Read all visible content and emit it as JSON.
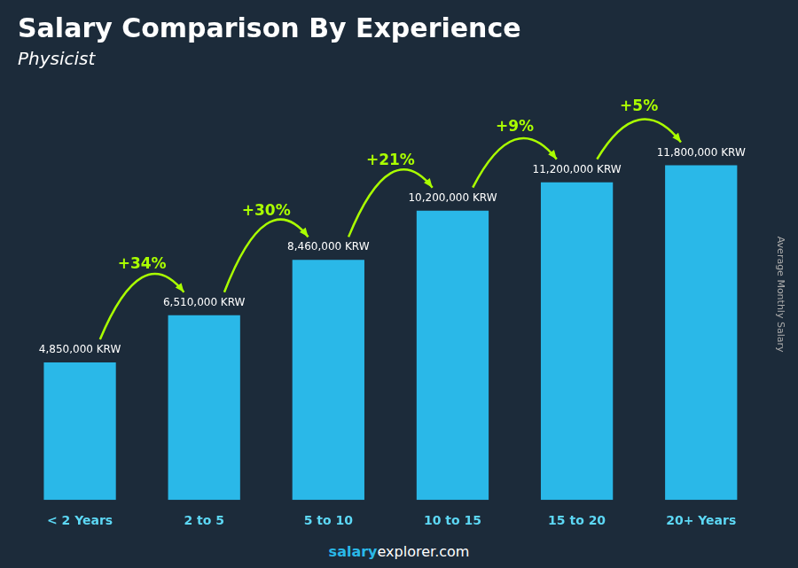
{
  "chart_data": {
    "type": "bar",
    "title": "Salary Comparison By Experience",
    "subtitle": "Physicist",
    "y_label": "Average Monthly Salary",
    "categories": [
      "< 2 Years",
      "2 to 5",
      "5 to 10",
      "10 to 15",
      "15 to 20",
      "20+ Years"
    ],
    "values": [
      4850000,
      6510000,
      8460000,
      10200000,
      11200000,
      11800000
    ],
    "value_labels": [
      "4,850,000 KRW",
      "6,510,000 KRW",
      "8,460,000 KRW",
      "10,200,000 KRW",
      "11,200,000 KRW",
      "11,800,000 KRW"
    ],
    "data_labels": true,
    "annotations": [
      "+34%",
      "+30%",
      "+21%",
      "+9%",
      "+5%"
    ],
    "footer": [
      "salary",
      "explorer.com"
    ],
    "color": "#2ab8e8",
    "ylim": [
      0,
      14500000
    ],
    "tick_labels": "x",
    "grid": false,
    "legend": false
  }
}
